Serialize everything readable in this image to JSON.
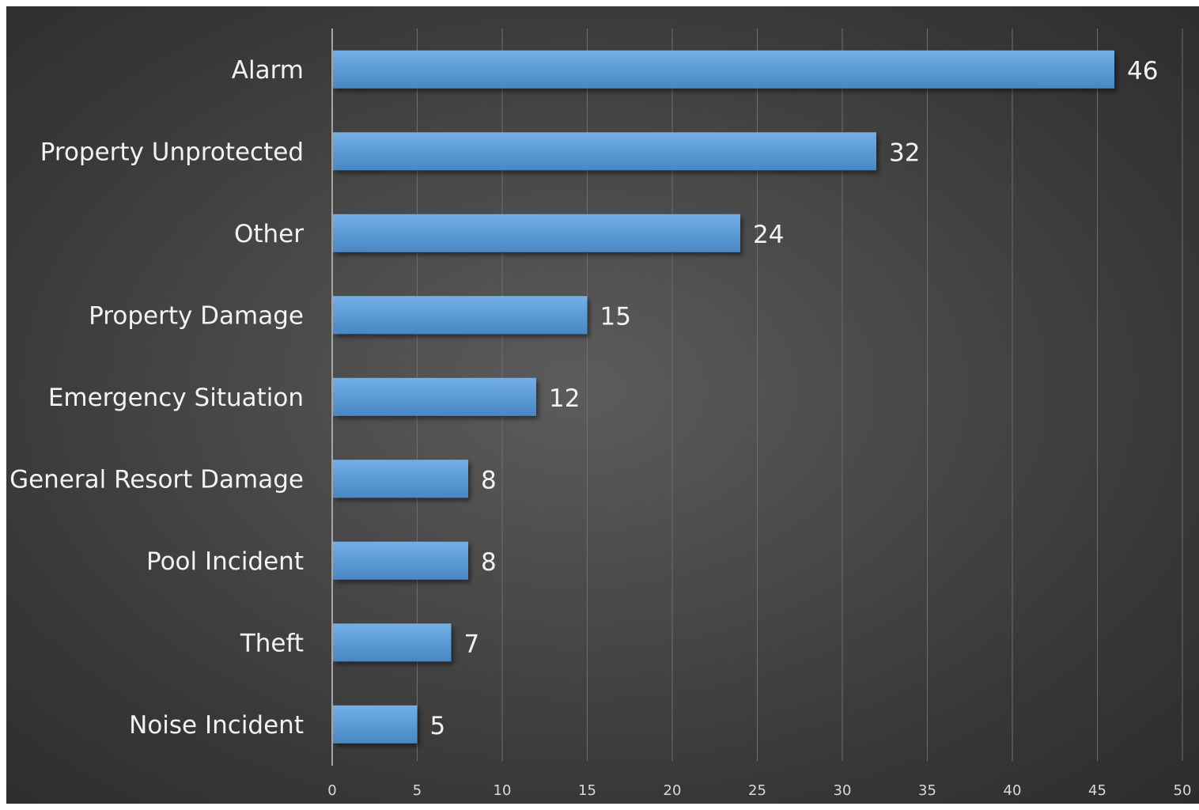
{
  "chart_data": {
    "type": "bar",
    "orientation": "horizontal",
    "title": "",
    "xlabel": "",
    "ylabel": "",
    "categories": [
      "Alarm",
      "Property Unprotected",
      "Other",
      "Property Damage",
      "Emergency Situation",
      "General Resort Damage",
      "Pool Incident",
      "Theft",
      "Noise Incident"
    ],
    "values": [
      46,
      32,
      24,
      15,
      12,
      8,
      8,
      7,
      5
    ],
    "xlim": [
      0,
      50
    ],
    "x_ticks": [
      "0",
      "5",
      "10",
      "15",
      "20",
      "25",
      "30",
      "35",
      "40",
      "45",
      "50"
    ],
    "data_labels": true,
    "grid": "vertical",
    "legend": "none",
    "colors": {
      "bar": "#5b9bd5",
      "bar_light": "#6ea9e2",
      "bar_dark": "#4a87c4",
      "background": "#404040",
      "text": "#f2f2f2"
    }
  }
}
